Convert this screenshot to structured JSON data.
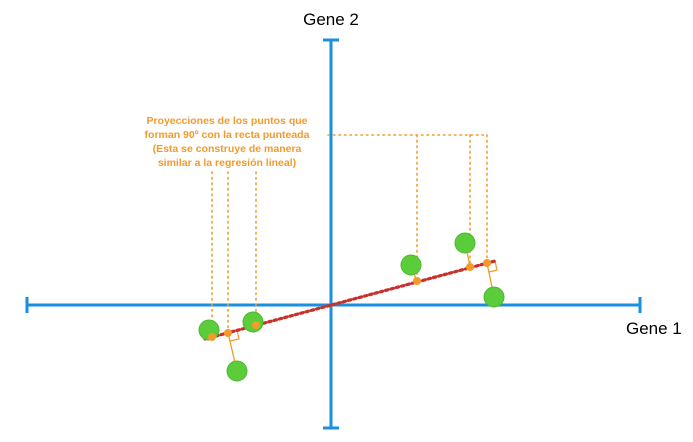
{
  "axes": {
    "x_label": "Gene 1",
    "y_label": "Gene 2"
  },
  "annotation": {
    "lines": [
      "Proyecciones de los puntos que",
      "forman 90º con la recta punteada",
      "(Esta se construye de manera",
      "similar a la regresión lineal)"
    ]
  },
  "colors": {
    "axis": "#1a8fe0",
    "point": "#5ccd3a",
    "projection": "#f39a2b",
    "fit_line": "#c8312b",
    "annotation_text": "#f39a2b"
  }
}
